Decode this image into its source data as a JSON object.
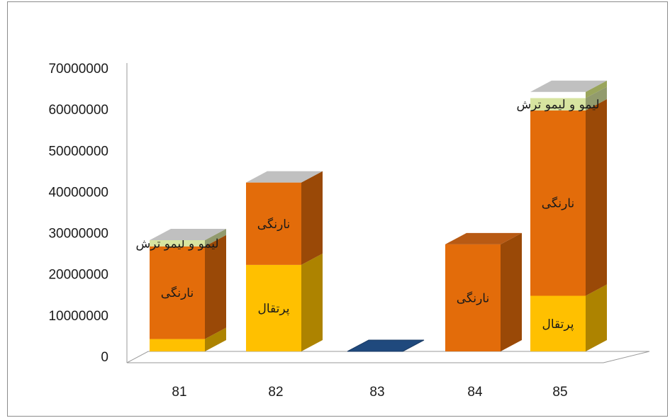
{
  "chart_data": {
    "type": "bar",
    "stacked": true,
    "three_d": true,
    "title": "",
    "xlabel": "",
    "ylabel": "",
    "ylim": [
      0,
      70000000
    ],
    "yticks": [
      0,
      10000000,
      20000000,
      30000000,
      40000000,
      50000000,
      60000000,
      70000000
    ],
    "ytick_labels": [
      "0",
      "10000000",
      "20000000",
      "30000000",
      "40000000",
      "50000000",
      "60000000",
      "70000000"
    ],
    "categories": [
      "81",
      "82",
      "83",
      "84",
      "85"
    ],
    "legend": "none",
    "grid": false,
    "series": [
      {
        "label": "پرتقال",
        "color": "#FFC000",
        "values": [
          3000000,
          21000000,
          0,
          0,
          13500000
        ],
        "show_label": [
          false,
          true,
          false,
          false,
          true
        ]
      },
      {
        "label": "نارنگی",
        "color": "#E36C0A",
        "values": [
          22500000,
          20000000,
          0,
          26000000,
          45000000
        ],
        "show_label": [
          true,
          true,
          false,
          true,
          true
        ]
      },
      {
        "label": "لیمو و لیمو ترش",
        "color": "#D7E4A0",
        "values": [
          1500000,
          0,
          0,
          0,
          3000000
        ],
        "show_label": [
          true,
          false,
          false,
          false,
          true
        ]
      },
      {
        "label": "",
        "color": "#FFFFFF",
        "values": [
          0,
          0,
          0,
          0,
          1500000
        ],
        "show_label": [
          false,
          false,
          false,
          false,
          false
        ]
      },
      {
        "label": "",
        "color": "#1F497D",
        "values": [
          0,
          0,
          0,
          0,
          0
        ],
        "show_label": [
          false,
          false,
          false,
          false,
          false
        ]
      }
    ]
  }
}
